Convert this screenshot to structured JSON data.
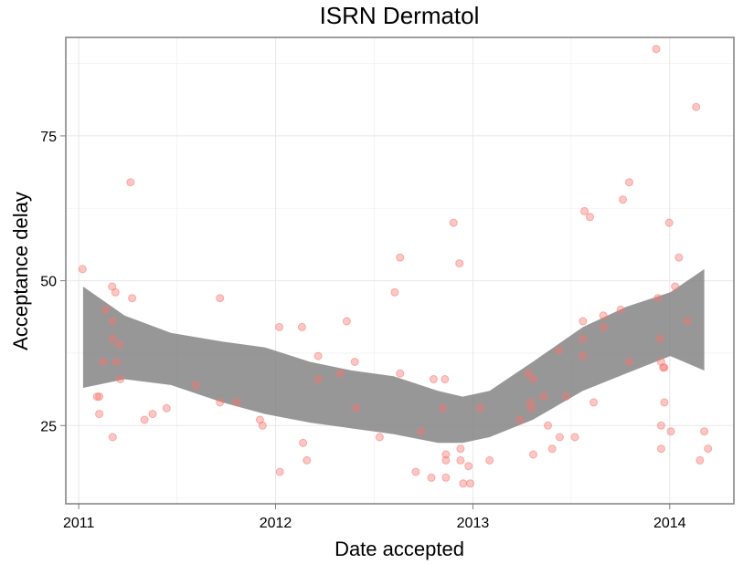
{
  "chart_data": {
    "type": "scatter",
    "title": "ISRN Dermatol",
    "xlabel": "Date accepted",
    "ylabel": "Acceptance delay",
    "xlim": [
      "2010-12-08",
      "2014-04-30"
    ],
    "ylim": [
      11.5,
      92.0
    ],
    "x_ticks": [
      "2011",
      "2012",
      "2013",
      "2014"
    ],
    "y_ticks": [
      25,
      50,
      75
    ],
    "grid": true,
    "point_color": "#F8766D",
    "band_color": "#808080",
    "points": [
      {
        "x": "2011-01-08",
        "y": 52
      },
      {
        "x": "2011-02-04",
        "y": 30
      },
      {
        "x": "2011-02-08",
        "y": 30
      },
      {
        "x": "2011-02-08",
        "y": 27
      },
      {
        "x": "2011-02-15",
        "y": 36
      },
      {
        "x": "2011-02-20",
        "y": 45
      },
      {
        "x": "2011-03-04",
        "y": 49
      },
      {
        "x": "2011-03-05",
        "y": 43
      },
      {
        "x": "2011-03-05",
        "y": 40
      },
      {
        "x": "2011-03-05",
        "y": 23
      },
      {
        "x": "2011-03-10",
        "y": 48
      },
      {
        "x": "2011-03-12",
        "y": 36
      },
      {
        "x": "2011-03-17",
        "y": 39
      },
      {
        "x": "2011-03-19",
        "y": 33
      },
      {
        "x": "2011-04-07",
        "y": 67
      },
      {
        "x": "2011-04-10",
        "y": 47
      },
      {
        "x": "2011-05-03",
        "y": 26
      },
      {
        "x": "2011-05-18",
        "y": 27
      },
      {
        "x": "2011-06-13",
        "y": 28
      },
      {
        "x": "2011-08-06",
        "y": 32
      },
      {
        "x": "2011-09-20",
        "y": 47
      },
      {
        "x": "2011-09-20",
        "y": 29
      },
      {
        "x": "2011-10-21",
        "y": 29
      },
      {
        "x": "2011-12-03",
        "y": 26
      },
      {
        "x": "2011-12-08",
        "y": 25
      },
      {
        "x": "2012-01-08",
        "y": 42
      },
      {
        "x": "2012-01-09",
        "y": 17
      },
      {
        "x": "2012-02-19",
        "y": 42
      },
      {
        "x": "2012-02-21",
        "y": 22
      },
      {
        "x": "2012-02-28",
        "y": 19
      },
      {
        "x": "2012-03-20",
        "y": 37
      },
      {
        "x": "2012-03-20",
        "y": 33
      },
      {
        "x": "2012-04-30",
        "y": 34
      },
      {
        "x": "2012-05-12",
        "y": 43
      },
      {
        "x": "2012-05-27",
        "y": 36
      },
      {
        "x": "2012-05-30",
        "y": 28
      },
      {
        "x": "2012-07-12",
        "y": 23
      },
      {
        "x": "2012-08-09",
        "y": 48
      },
      {
        "x": "2012-08-19",
        "y": 54
      },
      {
        "x": "2012-08-19",
        "y": 34
      },
      {
        "x": "2012-09-17",
        "y": 17
      },
      {
        "x": "2012-09-27",
        "y": 24
      },
      {
        "x": "2012-10-16",
        "y": 16
      },
      {
        "x": "2012-10-20",
        "y": 33
      },
      {
        "x": "2012-11-06",
        "y": 28
      },
      {
        "x": "2012-11-10",
        "y": 33
      },
      {
        "x": "2012-11-12",
        "y": 20
      },
      {
        "x": "2012-11-12",
        "y": 19
      },
      {
        "x": "2012-11-12",
        "y": 16
      },
      {
        "x": "2012-11-26",
        "y": 60
      },
      {
        "x": "2012-12-07",
        "y": 53
      },
      {
        "x": "2012-12-09",
        "y": 21
      },
      {
        "x": "2012-12-09",
        "y": 19
      },
      {
        "x": "2012-12-14",
        "y": 15
      },
      {
        "x": "2012-12-24",
        "y": 18
      },
      {
        "x": "2012-12-27",
        "y": 15
      },
      {
        "x": "2013-01-15",
        "y": 28
      },
      {
        "x": "2013-02-01",
        "y": 19
      },
      {
        "x": "2013-03-29",
        "y": 26
      },
      {
        "x": "2013-04-14",
        "y": 34
      },
      {
        "x": "2013-04-18",
        "y": 29
      },
      {
        "x": "2013-04-19",
        "y": 28
      },
      {
        "x": "2013-04-23",
        "y": 33
      },
      {
        "x": "2013-04-23",
        "y": 20
      },
      {
        "x": "2013-05-12",
        "y": 30
      },
      {
        "x": "2013-05-20",
        "y": 25
      },
      {
        "x": "2013-05-28",
        "y": 21
      },
      {
        "x": "2013-06-10",
        "y": 38
      },
      {
        "x": "2013-06-11",
        "y": 23
      },
      {
        "x": "2013-06-23",
        "y": 30
      },
      {
        "x": "2013-07-09",
        "y": 23
      },
      {
        "x": "2013-07-24",
        "y": 43
      },
      {
        "x": "2013-07-24",
        "y": 40
      },
      {
        "x": "2013-07-24",
        "y": 37
      },
      {
        "x": "2013-07-27",
        "y": 62
      },
      {
        "x": "2013-08-06",
        "y": 61
      },
      {
        "x": "2013-08-13",
        "y": 29
      },
      {
        "x": "2013-08-31",
        "y": 44
      },
      {
        "x": "2013-08-31",
        "y": 42
      },
      {
        "x": "2013-10-02",
        "y": 45
      },
      {
        "x": "2013-10-06",
        "y": 64
      },
      {
        "x": "2013-10-18",
        "y": 67
      },
      {
        "x": "2013-10-18",
        "y": 36
      },
      {
        "x": "2013-12-07",
        "y": 90
      },
      {
        "x": "2013-12-10",
        "y": 47
      },
      {
        "x": "2013-12-14",
        "y": 40
      },
      {
        "x": "2013-12-16",
        "y": 36
      },
      {
        "x": "2013-12-16",
        "y": 25
      },
      {
        "x": "2013-12-16",
        "y": 21
      },
      {
        "x": "2013-12-20",
        "y": 35
      },
      {
        "x": "2013-12-22",
        "y": 35
      },
      {
        "x": "2013-12-22",
        "y": 29
      },
      {
        "x": "2013-12-31",
        "y": 60
      },
      {
        "x": "2014-01-03",
        "y": 24
      },
      {
        "x": "2014-01-11",
        "y": 49
      },
      {
        "x": "2014-01-18",
        "y": 54
      },
      {
        "x": "2014-02-03",
        "y": 43
      },
      {
        "x": "2014-02-19",
        "y": 80
      },
      {
        "x": "2014-02-26",
        "y": 19
      },
      {
        "x": "2014-03-06",
        "y": 24
      },
      {
        "x": "2014-03-13",
        "y": 21
      }
    ],
    "smooth_band": [
      {
        "x": "2011-01-09",
        "lower": 31.5,
        "upper": 49
      },
      {
        "x": "2011-03-27",
        "lower": 33,
        "upper": 44
      },
      {
        "x": "2011-06-21",
        "lower": 32,
        "upper": 41
      },
      {
        "x": "2011-09-24",
        "lower": 29,
        "upper": 39.5
      },
      {
        "x": "2011-12-12",
        "lower": 27,
        "upper": 38.5
      },
      {
        "x": "2012-03-05",
        "lower": 25.5,
        "upper": 36
      },
      {
        "x": "2012-05-22",
        "lower": 24.5,
        "upper": 34.5
      },
      {
        "x": "2012-08-07",
        "lower": 23.5,
        "upper": 33.5
      },
      {
        "x": "2012-10-28",
        "lower": 22,
        "upper": 31
      },
      {
        "x": "2012-12-13",
        "lower": 22,
        "upper": 30
      },
      {
        "x": "2013-02-01",
        "lower": 23,
        "upper": 31
      },
      {
        "x": "2013-04-22",
        "lower": 26,
        "upper": 36
      },
      {
        "x": "2013-07-24",
        "lower": 31,
        "upper": 42
      },
      {
        "x": "2013-10-12",
        "lower": 34,
        "upper": 45.5
      },
      {
        "x": "2014-01-02",
        "lower": 37,
        "upper": 48
      },
      {
        "x": "2014-03-06",
        "lower": 34.5,
        "upper": 52
      }
    ]
  }
}
